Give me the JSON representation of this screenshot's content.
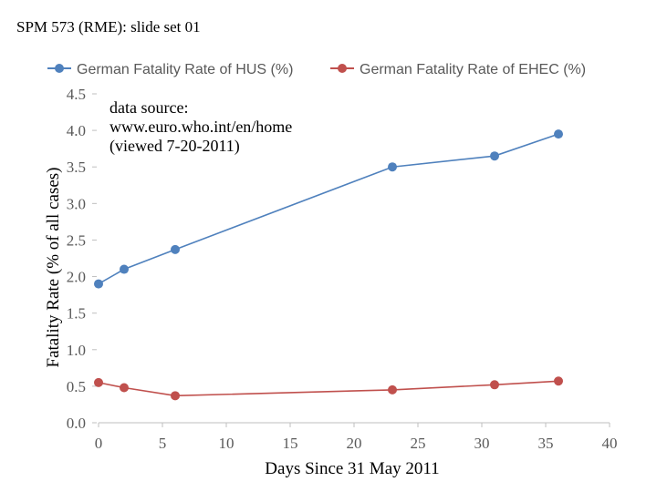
{
  "slide": {
    "title": "SPM 573 (RME): slide set 01"
  },
  "chart_data": {
    "type": "line",
    "xlabel": "Days Since 31 May 2011",
    "ylabel": "Fatality Rate (% of all cases)",
    "xlim": [
      0,
      40
    ],
    "ylim": [
      0,
      4.5
    ],
    "x_ticks": [
      "0",
      "5",
      "10",
      "15",
      "20",
      "25",
      "30",
      "35",
      "40"
    ],
    "y_ticks": [
      "0.0",
      "0.5",
      "1.0",
      "1.5",
      "2.0",
      "2.5",
      "3.0",
      "3.5",
      "4.0",
      "4.5"
    ],
    "grid": false,
    "legend_position": "top",
    "annotation": [
      "data source:",
      "www.euro.who.int/en/home",
      "(viewed 7-20-2011)"
    ],
    "series": [
      {
        "name": "German Fatality Rate of HUS (%)",
        "color": "#4f81bd",
        "x": [
          0,
          2,
          6,
          23,
          31,
          36
        ],
        "y": [
          1.9,
          2.1,
          2.37,
          3.5,
          3.65,
          3.95
        ]
      },
      {
        "name": "German Fatality Rate of EHEC (%)",
        "color": "#c0504d",
        "x": [
          0,
          2,
          6,
          23,
          31,
          36
        ],
        "y": [
          0.55,
          0.48,
          0.37,
          0.45,
          0.52,
          0.57
        ]
      }
    ]
  }
}
